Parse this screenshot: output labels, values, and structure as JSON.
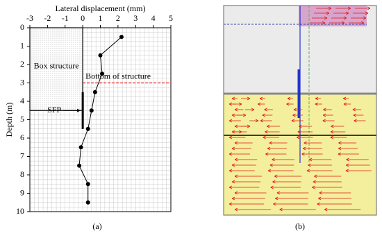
{
  "chart_data": {
    "type": "line",
    "x_label": "Lateral displacement (mm)",
    "y_label": "Depth (m)",
    "xlim": [
      -3,
      5
    ],
    "xticks": [
      -3,
      -2,
      -1,
      0,
      1,
      2,
      3,
      4,
      5
    ],
    "ylim": [
      0,
      10
    ],
    "yticks": [
      0,
      1,
      2,
      3,
      4,
      5,
      6,
      7,
      8,
      9,
      10
    ],
    "grid": true,
    "grid_minor_divisions": 4,
    "series": [
      {
        "x": [
          2.2,
          1.0,
          1.1,
          0.7,
          0.5,
          0.3,
          -0.1,
          -0.2,
          0.3,
          0.3
        ],
        "values": [
          0.5,
          1.5,
          2.5,
          3.5,
          4.5,
          5.5,
          6.5,
          7.5,
          8.5,
          9.5
        ],
        "color": "#000000"
      }
    ],
    "annotations": [
      {
        "text": "Box structure",
        "x": [
          -3,
          0
        ],
        "y": [
          0,
          4.5
        ]
      },
      {
        "text": "Bottom of structure",
        "x": [
          0,
          5
        ],
        "y": 3,
        "color": "#e02020"
      },
      {
        "text": "SFP",
        "x": 0,
        "y": [
          3.5,
          5.5
        ]
      }
    ]
  },
  "panel_labels": [
    "(a)",
    "(b)"
  ]
}
